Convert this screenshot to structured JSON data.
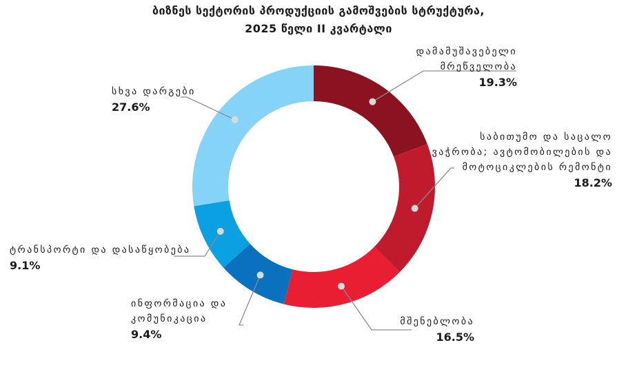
{
  "title_line1": "ბიზნეს სექტორის პროდუქციის გამოშვების სტრუქტურა,",
  "title_line2": "2025 წელი  II კვარტალი",
  "chart_data": {
    "type": "pie",
    "donut": true,
    "title": "ბიზნეს სექტორის პროდუქციის გამოშვების სტრუქტურა, 2025 წელი  II კვარტალი",
    "categories": [
      "დამამუშავებელი მრეწველობა",
      "საბითუმო და საცალო ვაჭრობა; ავტომობილების და მოტოციკლების რემონტი",
      "მშენებლობა",
      "ინფორმაცია და კომუნიკაცია",
      "ტრანსპორტი და დასაწყობება",
      "სხვა დარგები"
    ],
    "values": [
      19.3,
      18.2,
      16.5,
      9.4,
      9.1,
      27.6
    ],
    "value_labels": [
      "19.3%",
      "18.2%",
      "16.5%",
      "9.4%",
      "9.1%",
      "27.6%"
    ],
    "colors": [
      "#8b1320",
      "#bf1b2c",
      "#ea1e33",
      "#0a71bf",
      "#0aa0e2",
      "#85d3f6"
    ]
  },
  "labels": {
    "manufacturing": {
      "line1": "დამამუშავებელი",
      "line2": "მრეწველობა",
      "pct": "19.3%"
    },
    "trade": {
      "line1": "საბითუმო და საცალო",
      "line2": "ვაჭრობა; ავტომობილების და",
      "line3": "მოტოციკლების რემონტი",
      "pct": "18.2%"
    },
    "construction": {
      "line1": "მშენებლობა",
      "pct": "16.5%"
    },
    "ict": {
      "line1": "ინფორმაცია და",
      "line2": "კომუნიკაცია",
      "pct": "9.4%"
    },
    "transport": {
      "line1": "ტრანსპორტი და დასაწყობება",
      "pct": "9.1%"
    },
    "other": {
      "line1": "სხვა დარგები",
      "pct": "27.6%"
    }
  },
  "leader_color": "#8c8c8c"
}
